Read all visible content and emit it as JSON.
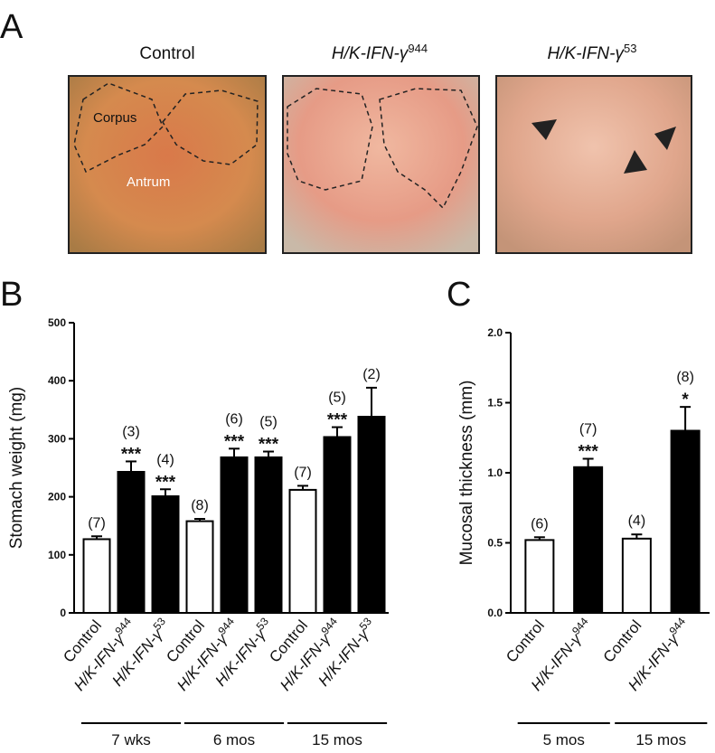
{
  "panels": {
    "a": "A",
    "b": "B",
    "c": "C"
  },
  "photos": {
    "titles": [
      {
        "text": "Control"
      },
      {
        "text": "H/K-IFN-γ",
        "sup": "944"
      },
      {
        "text": "H/K-IFN-γ",
        "sup": "53"
      }
    ],
    "annotations": [
      "Corpus",
      "Antrum"
    ]
  },
  "chart_data": [
    {
      "type": "bar",
      "ylabel": "Stomach weight (mg)",
      "categories": [
        {
          "text": "Control"
        },
        {
          "text": "H/K-IFN-γ",
          "sup": "944"
        },
        {
          "text": "H/K-IFN-γ",
          "sup": "53"
        },
        {
          "text": "Control"
        },
        {
          "text": "H/K-IFN-γ",
          "sup": "944"
        },
        {
          "text": "H/K-IFN-γ",
          "sup": "53"
        },
        {
          "text": "Control"
        },
        {
          "text": "H/K-IFN-γ",
          "sup": "944"
        },
        {
          "text": "H/K-IFN-γ",
          "sup": "53"
        }
      ],
      "values": [
        127,
        243,
        201,
        158,
        268,
        268,
        212,
        303,
        338
      ],
      "errors": [
        5,
        18,
        12,
        4,
        15,
        10,
        7,
        17,
        50
      ],
      "colors": [
        "#ffffff",
        "#000000",
        "#000000",
        "#ffffff",
        "#000000",
        "#000000",
        "#ffffff",
        "#000000",
        "#000000"
      ],
      "n_labels": [
        "(7)",
        "(3)",
        "(4)",
        "(8)",
        "(6)",
        "(5)",
        "(7)",
        "(5)",
        "(2)"
      ],
      "significance": [
        null,
        "***",
        "***",
        null,
        "***",
        "***",
        null,
        "***",
        null
      ],
      "groups": [
        "7 wks",
        "6 mos",
        "15 mos"
      ],
      "ylim": [
        0,
        500
      ],
      "yticks": [
        0,
        100,
        200,
        300,
        400,
        500
      ]
    },
    {
      "type": "bar",
      "ylabel": "Mucosal thickness (mm)",
      "categories": [
        {
          "text": "Control"
        },
        {
          "text": "H/K-IFN-γ",
          "sup": "944"
        },
        {
          "text": "Control"
        },
        {
          "text": "H/K-IFN-γ",
          "sup": "944"
        }
      ],
      "values": [
        0.52,
        1.04,
        0.53,
        1.3
      ],
      "errors": [
        0.02,
        0.06,
        0.03,
        0.17
      ],
      "colors": [
        "#ffffff",
        "#000000",
        "#ffffff",
        "#000000"
      ],
      "n_labels": [
        "(6)",
        "(7)",
        "(4)",
        "(8)"
      ],
      "significance": [
        null,
        "***",
        null,
        "*"
      ],
      "groups": [
        "5 mos",
        "15 mos"
      ],
      "ylim": [
        0,
        2
      ],
      "yticks": [
        {
          "value": 0,
          "label": "0.0"
        },
        0.5,
        {
          "value": 1,
          "label": "1.0"
        },
        1.5,
        {
          "value": 2,
          "label": "2.0"
        }
      ]
    }
  ]
}
